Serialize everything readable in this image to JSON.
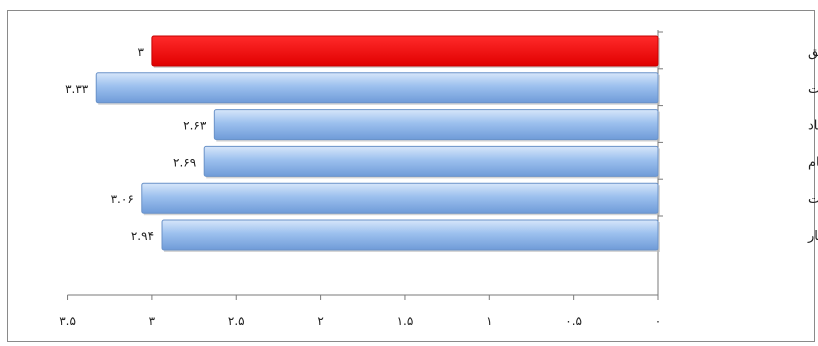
{
  "chart_data": {
    "type": "bar",
    "orientation": "horizontal",
    "x_reversed": true,
    "categories": [
      "میانه نظری تحقیق",
      "مشارکت",
      "اعتماد",
      "انسجام",
      "امنیت",
      "هنجار"
    ],
    "values": [
      3,
      3.33,
      2.63,
      2.69,
      3.06,
      2.94
    ],
    "value_labels": [
      "۳",
      "۳.۳۳",
      "۲.۶۳",
      "۲.۶۹",
      "۳.۰۶",
      "۲.۹۴"
    ],
    "bar_colors": [
      "#ee1111",
      "#8db4e8",
      "#8db4e8",
      "#8db4e8",
      "#8db4e8",
      "#8db4e8"
    ],
    "xlim": [
      0,
      3.5
    ],
    "x_ticks": [
      0,
      0.5,
      1,
      1.5,
      2,
      2.5,
      3,
      3.5
    ],
    "x_tick_labels": [
      "۰",
      "۰.۵",
      "۱",
      "۱.۵",
      "۲",
      "۲.۵",
      "۳",
      "۳.۵"
    ],
    "grid": false,
    "legend": "none"
  }
}
